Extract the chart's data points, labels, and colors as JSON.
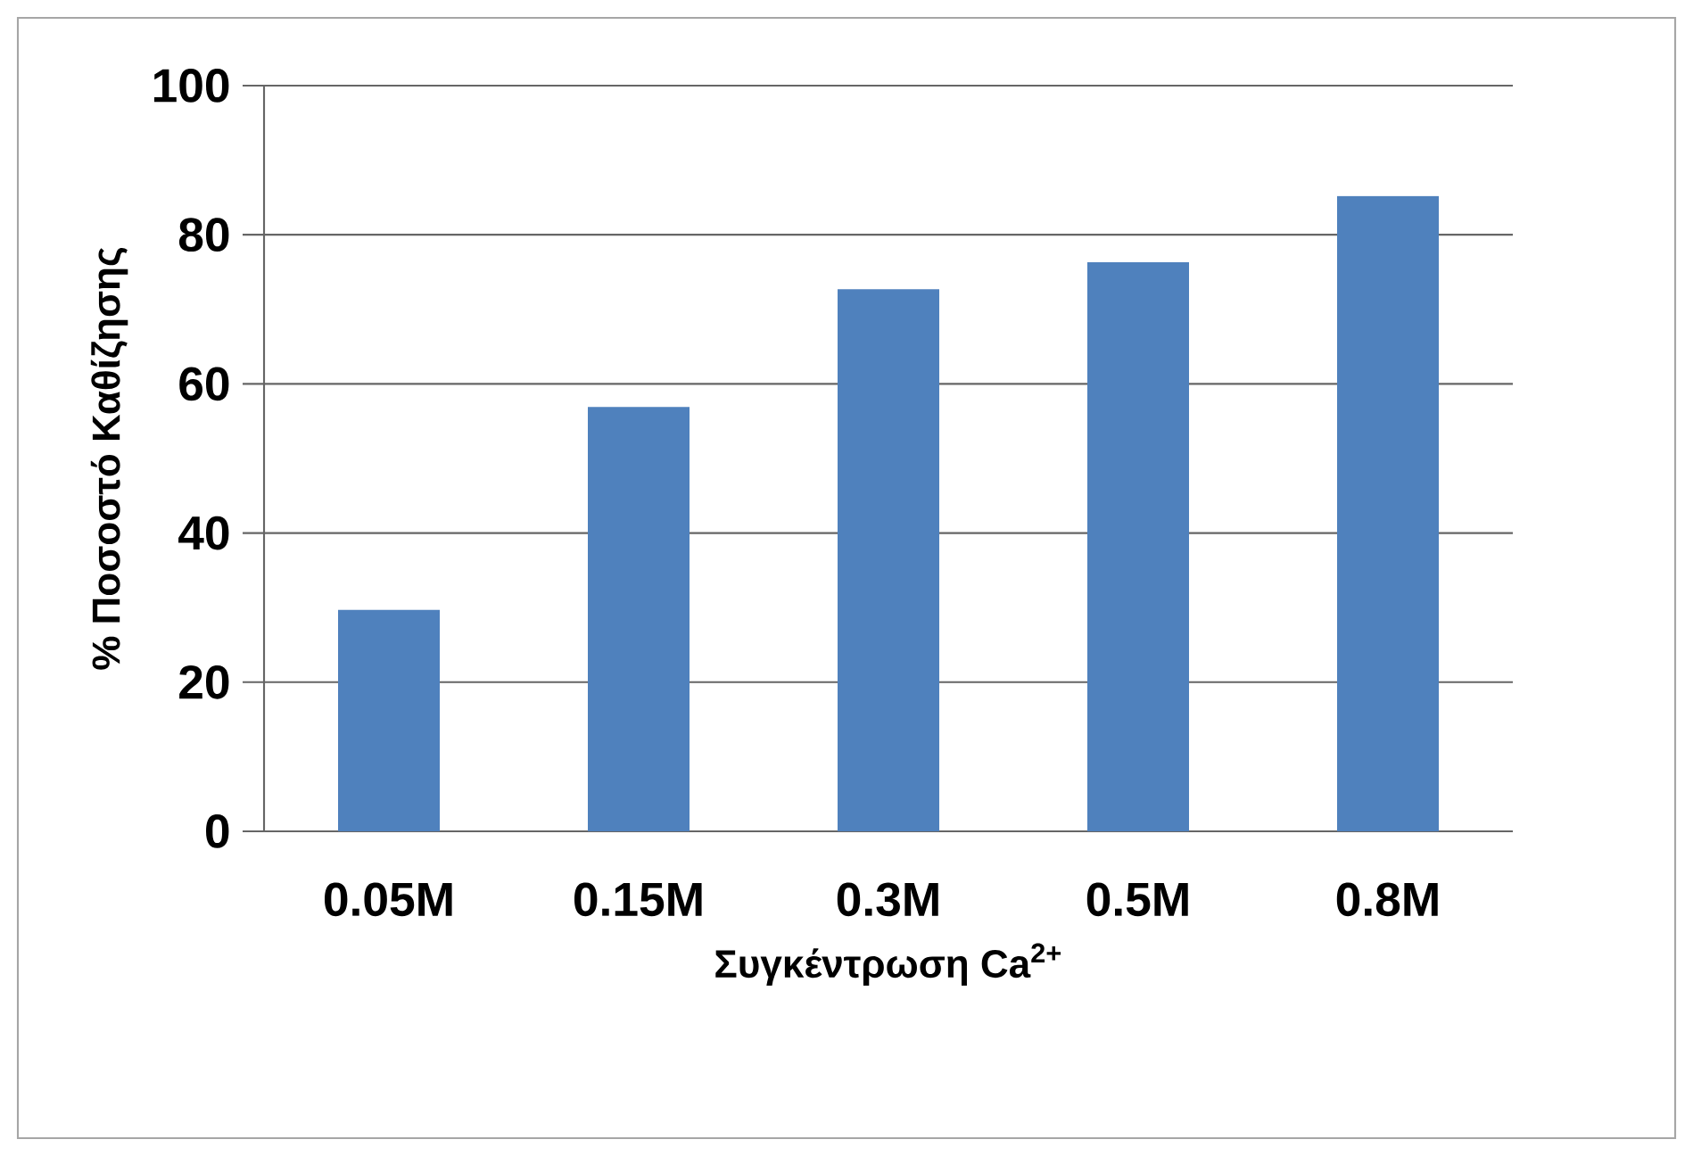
{
  "chart_data": {
    "type": "bar",
    "xlabel": "Συγκέντρωση Ca$^{2+}$",
    "ylabel": "% Ποσοστό Καθίζησης",
    "categories": [
      "0.05M",
      "0.15M",
      "0.3M",
      "0.5M",
      "0.8M"
    ],
    "values": [
      29.7,
      56.9,
      72.7,
      76.3,
      85.2
    ],
    "color": "#4f81bd",
    "ylim": [
      0,
      100
    ],
    "yticks": [
      0,
      20,
      40,
      60,
      80,
      100
    ],
    "grid": "y"
  }
}
